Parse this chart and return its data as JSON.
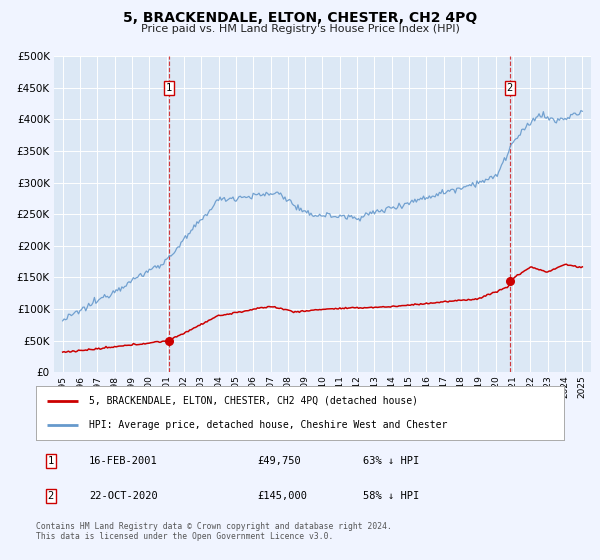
{
  "title": "5, BRACKENDALE, ELTON, CHESTER, CH2 4PQ",
  "subtitle": "Price paid vs. HM Land Registry's House Price Index (HPI)",
  "bg_color": "#f0f4ff",
  "plot_bg_color": "#dce8f5",
  "grid_color": "#ffffff",
  "red_line_color": "#cc0000",
  "blue_line_color": "#6699cc",
  "sale1_year": 2001.12,
  "sale1_price": 49750,
  "sale2_year": 2020.8,
  "sale2_price": 145000,
  "ylim": [
    0,
    500000
  ],
  "xlim_start": 1994.5,
  "xlim_end": 2025.5,
  "ylabel_ticks": [
    0,
    50000,
    100000,
    150000,
    200000,
    250000,
    300000,
    350000,
    400000,
    450000,
    500000
  ],
  "ylabel_labels": [
    "£0",
    "£50K",
    "£100K",
    "£150K",
    "£200K",
    "£250K",
    "£300K",
    "£350K",
    "£400K",
    "£450K",
    "£500K"
  ],
  "legend_label_red": "5, BRACKENDALE, ELTON, CHESTER, CH2 4PQ (detached house)",
  "legend_label_blue": "HPI: Average price, detached house, Cheshire West and Chester",
  "footer": "Contains HM Land Registry data © Crown copyright and database right 2024.\nThis data is licensed under the Open Government Licence v3.0."
}
